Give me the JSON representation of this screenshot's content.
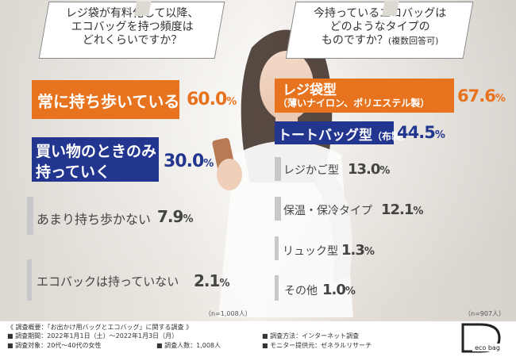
{
  "chart_data": [
    {
      "type": "bar",
      "title": "レジ袋が有料化して以降、エコバッグを持つ頻度はどれくらいですか？",
      "categories": [
        "常に持ち歩いている",
        "買い物のときのみ持っていく",
        "あまり持ち歩かない",
        "エコバックは持っていない"
      ],
      "values": [
        60.0,
        30.0,
        7.9,
        2.1
      ],
      "unit": "%",
      "sample": "（n=1,008人）",
      "colors": [
        "#e8731e",
        "#23368f",
        "#c8c8c8",
        "#c8c8c8"
      ]
    },
    {
      "type": "bar",
      "title": "今持っているエコバッグはどのようなタイプのものですか？（複数回答可）",
      "categories": [
        "レジ袋型（薄いナイロン、ポリエステル製）",
        "トートバッグ型（布製）",
        "レジかご型",
        "保温・保冷タイプ",
        "リュック型",
        "その他"
      ],
      "values": [
        67.6,
        44.5,
        13.0,
        12.1,
        1.3,
        1.0
      ],
      "unit": "%",
      "sample": "（n=907人）",
      "colors": [
        "#e8731e",
        "#23368f",
        "#c8c8c8",
        "#c8c8c8",
        "#c8c8c8",
        "#c8c8c8"
      ]
    }
  ],
  "q1": {
    "line1": "レジ袋が有料化して以降、",
    "line2": "エコバッグを持つ頻度は",
    "line3": "どれくらいですか？"
  },
  "q2": {
    "line1": "今持っているエコバッグは",
    "line2": "どのようなタイプの",
    "line3": "ものですか？",
    "note": "(複数回答可)"
  },
  "left": {
    "items": [
      {
        "label1": "常に持ち歩いている",
        "label2": "",
        "num": "60.0",
        "unit": "%"
      },
      {
        "label1": "買い物のときのみ",
        "label2": "持っていく",
        "num": "30.0",
        "unit": "%"
      },
      {
        "label1": "あまり持ち歩かない",
        "label2": "",
        "num": "7.9",
        "unit": "%"
      },
      {
        "label1": "エコバックは持っていない",
        "label2": "",
        "num": "2.1",
        "unit": "%"
      }
    ],
    "sample": "（n=1,008人）"
  },
  "right": {
    "items": [
      {
        "label1": "レジ袋型",
        "label2": "（薄いナイロン、ポリエステル製）",
        "num": "67.6",
        "unit": "%"
      },
      {
        "label1": "トートバッグ型",
        "label2": "（布製）",
        "num": "44.5",
        "unit": "%"
      },
      {
        "label1": "レジかご型",
        "label2": "",
        "num": "13.0",
        "unit": "%"
      },
      {
        "label1": "保温・保冷タイプ",
        "label2": "",
        "num": "12.1",
        "unit": "%"
      },
      {
        "label1": "リュック型",
        "label2": "",
        "num": "1.3",
        "unit": "%"
      },
      {
        "label1": "その他",
        "label2": "",
        "num": "1.0",
        "unit": "%"
      }
    ],
    "sample": "（n=907人）"
  },
  "footer": {
    "overview": "《 調査概要：「お出かけ用バッグとエコバッグ」に関する調査 》",
    "period": "■ 調査期間：2022年1月1日（土）～2022年1月3日（月）",
    "target": "■ 調査対象：20代～40代の女性",
    "count": "■ 調査人数：1,008人",
    "method": "■ 調査方法：インターネット調査",
    "provider": "■ モニター提供元：ゼネラルリサーチ",
    "logo_text": "eco bag"
  }
}
